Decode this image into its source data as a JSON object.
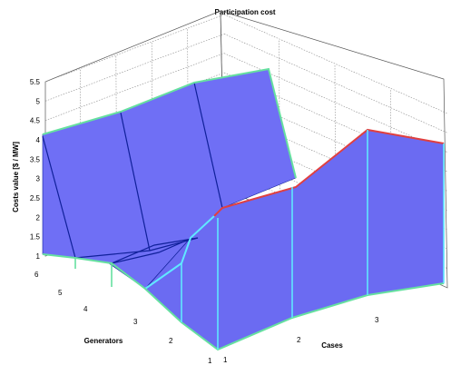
{
  "chart_data": {
    "type": "surface",
    "title": "Participation cost",
    "xlabel": "Cases",
    "ylabel": "Generators",
    "zlabel": "Costs value [$ / MW]",
    "x_ticks": [
      "1",
      "2",
      "3"
    ],
    "y_ticks": [
      "1",
      "2",
      "3",
      "4",
      "5",
      "6"
    ],
    "z_ticks": [
      "1",
      "1.5",
      "2",
      "2.5",
      "3",
      "3.5",
      "4",
      "4.5",
      "5",
      "5.5"
    ],
    "zlim": [
      1,
      5.5
    ],
    "grid": true,
    "surface_color": "#6f6ff5",
    "edge_colors": {
      "top_edge": "#66e0a0",
      "right_edge": "#e04040",
      "front_edge": "#60e8ff",
      "interior_lines": "#10209a"
    },
    "series": [
      {
        "generator": 6,
        "cases": [
          1,
          2,
          3
        ],
        "values": [
          4.2,
          5.1,
          5.5
        ]
      },
      {
        "generator": 5,
        "cases": [
          1,
          2,
          3
        ],
        "values": [
          1.3,
          1.5,
          1.7
        ]
      },
      {
        "generator": 4,
        "cases": [
          1,
          2,
          3
        ],
        "values": [
          1.2,
          1.3,
          1.6
        ]
      },
      {
        "generator": 3,
        "cases": [
          1,
          2,
          3
        ],
        "values": [
          1.1,
          1.2,
          1.5
        ]
      },
      {
        "generator": 2,
        "cases": [
          1,
          2,
          3
        ],
        "values": [
          1.2,
          1.5,
          2.0
        ]
      },
      {
        "generator": 1,
        "cases": [
          1,
          2,
          3
        ],
        "values": [
          2.3,
          3.0,
          4.2
        ]
      }
    ]
  }
}
